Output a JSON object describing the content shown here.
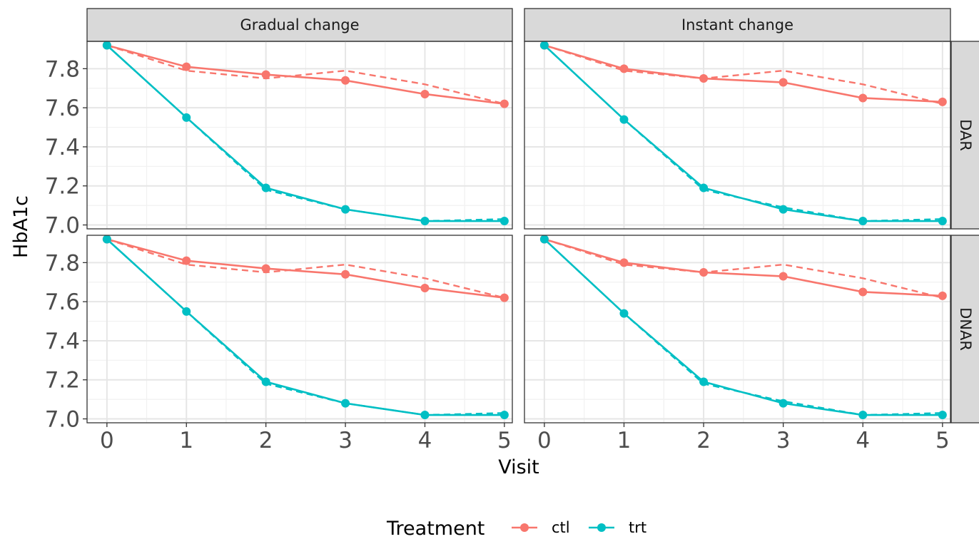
{
  "chart_data": {
    "type": "line",
    "xlabel": "Visit",
    "ylabel": "HbA1c",
    "x": [
      0,
      1,
      2,
      3,
      4,
      5
    ],
    "xticks": [
      "0",
      "1",
      "2",
      "3",
      "4",
      "5"
    ],
    "yticks": [
      "7.0",
      "7.2",
      "7.4",
      "7.6",
      "7.8"
    ],
    "xlim": [
      -0.25,
      5.1
    ],
    "ylim": [
      6.98,
      7.94
    ],
    "grid": true,
    "legend": {
      "title": "Treatment",
      "position": "bottom",
      "entries": [
        {
          "label": "ctl",
          "color": "#F8766D"
        },
        {
          "label": "trt",
          "color": "#00BFC4"
        }
      ]
    },
    "col_facets": [
      "Gradual change",
      "Instant change"
    ],
    "row_facets": [
      "DAR",
      "DNAR"
    ],
    "panels": [
      {
        "col": "Gradual change",
        "row": "DAR",
        "series": [
          {
            "treatment": "ctl",
            "color": "#F8766D",
            "solid": [
              7.92,
              7.81,
              7.77,
              7.74,
              7.67,
              7.62
            ],
            "dashed": [
              7.92,
              7.79,
              7.75,
              7.79,
              7.72,
              7.62
            ]
          },
          {
            "treatment": "trt",
            "color": "#00BFC4",
            "solid": [
              7.92,
              7.55,
              7.19,
              7.08,
              7.02,
              7.02
            ],
            "dashed": [
              7.92,
              7.55,
              7.18,
              7.08,
              7.02,
              7.03
            ]
          }
        ]
      },
      {
        "col": "Instant change",
        "row": "DAR",
        "series": [
          {
            "treatment": "ctl",
            "color": "#F8766D",
            "solid": [
              7.92,
              7.8,
              7.75,
              7.73,
              7.65,
              7.63
            ],
            "dashed": [
              7.92,
              7.79,
              7.75,
              7.79,
              7.72,
              7.62
            ]
          },
          {
            "treatment": "trt",
            "color": "#00BFC4",
            "solid": [
              7.92,
              7.54,
              7.19,
              7.08,
              7.02,
              7.02
            ],
            "dashed": [
              7.92,
              7.54,
              7.18,
              7.09,
              7.02,
              7.03
            ]
          }
        ]
      },
      {
        "col": "Gradual change",
        "row": "DNAR",
        "series": [
          {
            "treatment": "ctl",
            "color": "#F8766D",
            "solid": [
              7.92,
              7.81,
              7.77,
              7.74,
              7.67,
              7.62
            ],
            "dashed": [
              7.92,
              7.79,
              7.75,
              7.79,
              7.72,
              7.62
            ]
          },
          {
            "treatment": "trt",
            "color": "#00BFC4",
            "solid": [
              7.92,
              7.55,
              7.19,
              7.08,
              7.02,
              7.02
            ],
            "dashed": [
              7.92,
              7.55,
              7.18,
              7.08,
              7.02,
              7.03
            ]
          }
        ]
      },
      {
        "col": "Instant change",
        "row": "DNAR",
        "series": [
          {
            "treatment": "ctl",
            "color": "#F8766D",
            "solid": [
              7.92,
              7.8,
              7.75,
              7.73,
              7.65,
              7.63
            ],
            "dashed": [
              7.92,
              7.79,
              7.75,
              7.79,
              7.72,
              7.62
            ]
          },
          {
            "treatment": "trt",
            "color": "#00BFC4",
            "solid": [
              7.92,
              7.54,
              7.19,
              7.08,
              7.02,
              7.02
            ],
            "dashed": [
              7.92,
              7.54,
              7.18,
              7.09,
              7.02,
              7.03
            ]
          }
        ]
      }
    ]
  }
}
